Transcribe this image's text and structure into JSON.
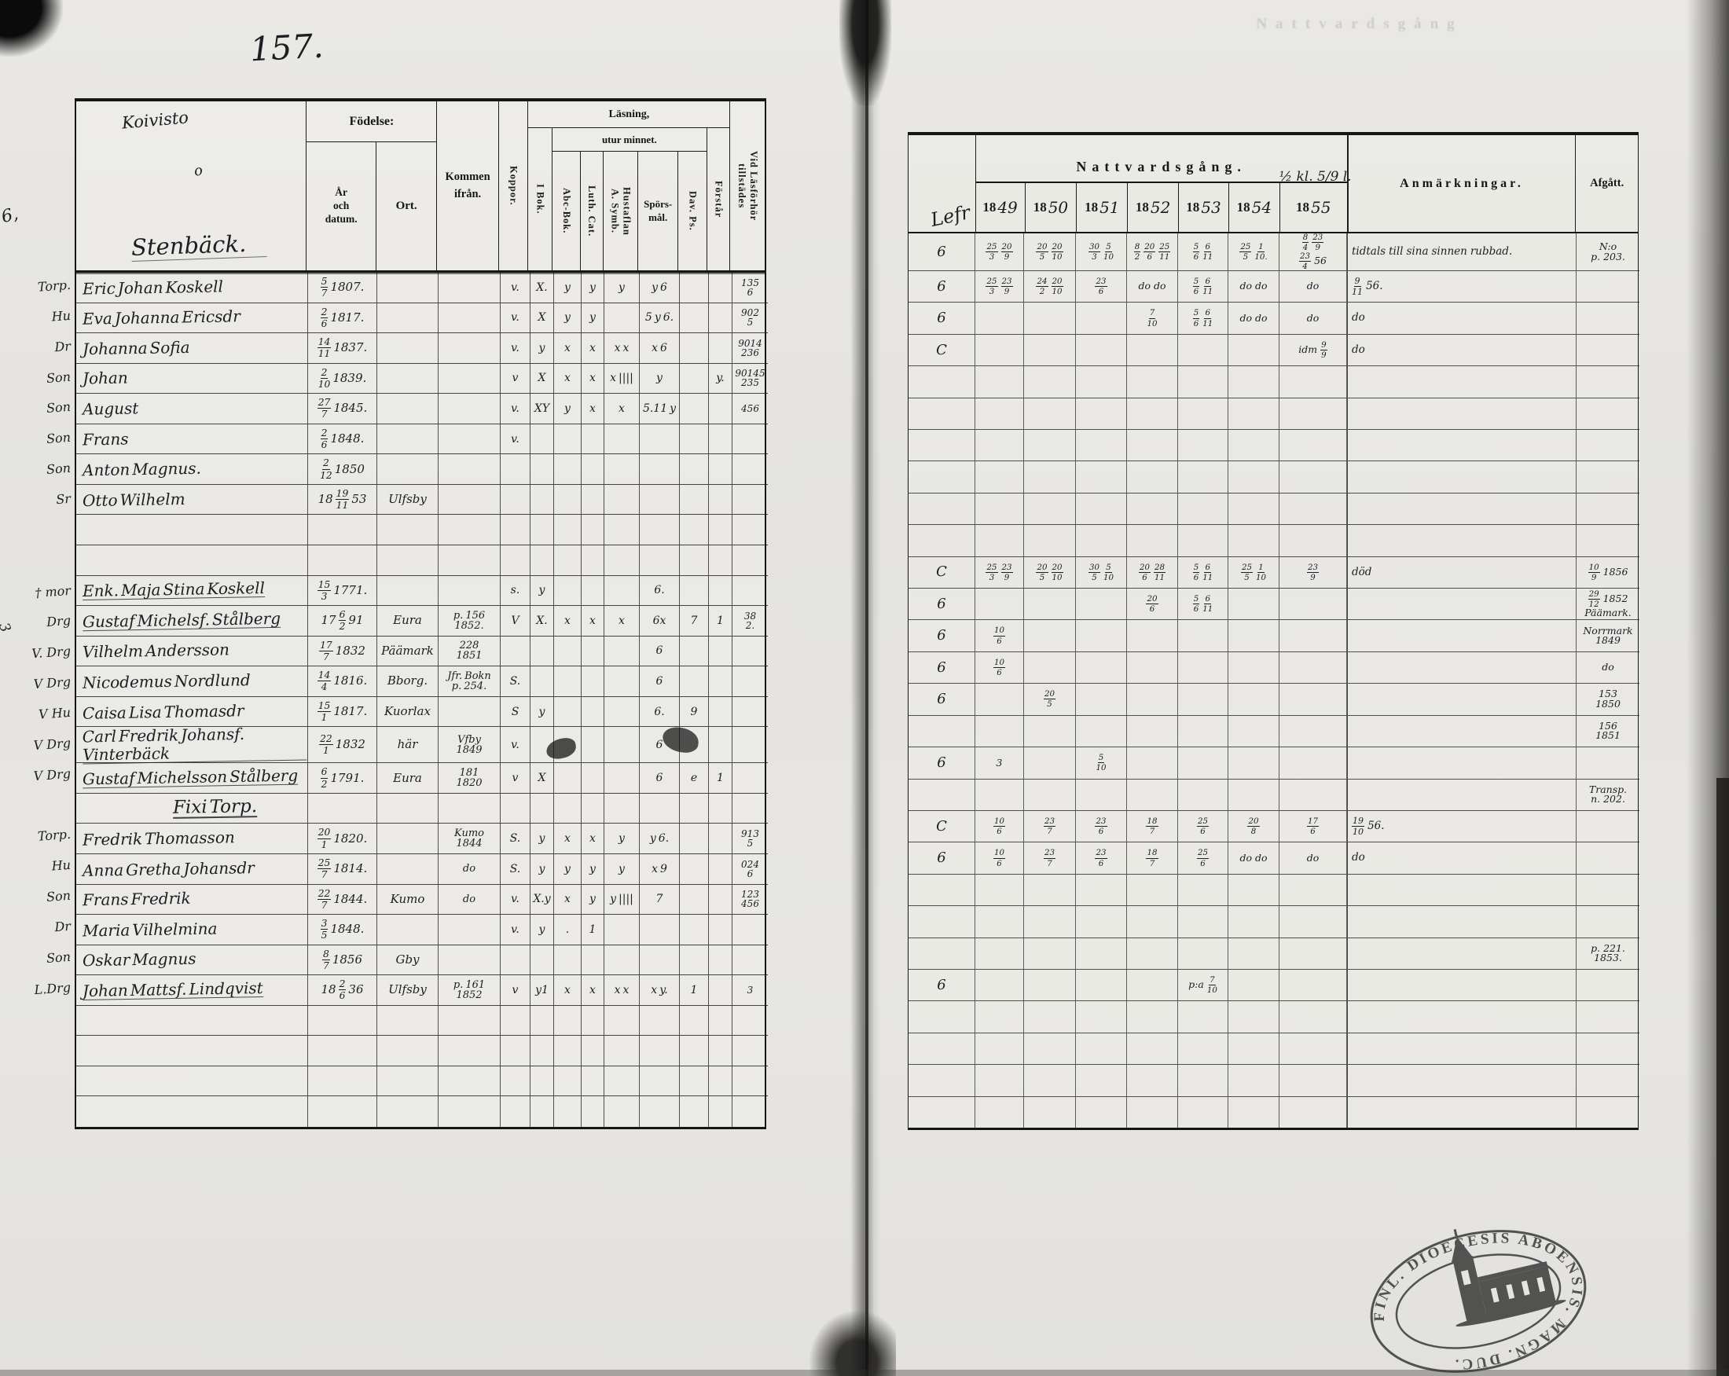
{
  "page": {
    "number": "157.",
    "margin_mark": "6,",
    "margin_mark2": "3",
    "ghost_header": "Nattvardsgång",
    "stamp": {
      "text": "FINL.  DIOECESIS ABOENSIS.  MAGN. DUC."
    }
  },
  "left": {
    "script_top": "Koivisto",
    "script_flourish": "o",
    "script_main": "Stenbäck.",
    "h": {
      "fodelse": "Födelse:",
      "ar": "År\noch\ndatum.",
      "ort": "Ort.",
      "kommen": "Kommen\nifrån.",
      "koppor": "Koppor.",
      "ibok": "I Bok.",
      "lasning": "Läsning,",
      "utur": "utur minnet.",
      "abc": "Abc-Bok.",
      "luth": "Luth. Cat.",
      "hust": "Hustaflan\nA. Symb.",
      "spors": "Spörs-\nmål.",
      "dav": "Dav. Ps.",
      "forst": "Förstår",
      "vidlas": "Vid Läsförhör\ntillstädes"
    }
  },
  "right": {
    "h": {
      "laser_script": "Lefr",
      "natt": "Nattvardsgång.",
      "natt_note": "½ kl. 5/9 l.",
      "years": [
        "1849",
        "1850",
        "1851",
        "1852",
        "1853",
        "1854",
        "1855"
      ],
      "anm": "Anmärkningar.",
      "afg": "Afgått."
    }
  },
  "rows": [
    {
      "prefix": "Torp.",
      "name": "Eric Johan Koskell",
      "born": "5/7 1807.",
      "ort": "",
      "from": "",
      "koppor": "v.",
      "ibok": "X.",
      "abc": "y",
      "luth": "y",
      "hust": "y",
      "spors": "y 6",
      "dav": "",
      "forst": "",
      "vidlas": "135\n6",
      "laser": "6",
      "y49": "25/3 20/9",
      "y50": "20/5 20/10",
      "y51": "30/3 5/10",
      "y52": "8/2 20/6 25/11",
      "y53": "5/6 6/11",
      "y54": "25/5 1/10.",
      "y55": "8/4 23/9\n23/4 56",
      "anm": "tidtals till sina sinnen rubbad.",
      "afg": "N:o\np. 203."
    },
    {
      "prefix": "Hu",
      "name": "Eva Johanna Ericsdr",
      "born": "2/6 1817.",
      "ort": "",
      "from": "",
      "koppor": "v.",
      "ibok": "X",
      "abc": "y",
      "luth": "y",
      "hust": "",
      "spors": "5 y 6.",
      "dav": "",
      "forst": "",
      "vidlas": "902\n5",
      "laser": "6",
      "y49": "25/3 23/9",
      "y50": "24/2 20/10",
      "y51": "23/6",
      "y52": "do do",
      "y53": "5/6 6/11",
      "y54": "do do",
      "y55": "do",
      "anm": "9/11 56.",
      "afg": ""
    },
    {
      "prefix": "Dr",
      "name": "Johanna Sofia",
      "born": "14/11 1837.",
      "ort": "",
      "from": "",
      "koppor": "v.",
      "ibok": "y",
      "abc": "x",
      "luth": "x",
      "hust": "x x",
      "spors": "x 6",
      "dav": "",
      "forst": "",
      "vidlas": "9014\n236",
      "laser": "6",
      "y49": "",
      "y50": "",
      "y51": "",
      "y52": "7/10",
      "y53": "5/6 6/11",
      "y54": "do do",
      "y55": "do",
      "anm": "do",
      "afg": ""
    },
    {
      "prefix": "Son",
      "name": "Johan",
      "born": "2/10 1839.",
      "ort": "",
      "from": "",
      "koppor": "v",
      "ibok": "X",
      "abc": "x",
      "luth": "x",
      "hust": "x ||||",
      "spors": "y",
      "dav": "",
      "forst": "y.",
      "vidlas": "90145\n235",
      "laser": "C",
      "y49": "",
      "y50": "",
      "y51": "",
      "y52": "",
      "y53": "",
      "y54": "",
      "y55": "idm 9/9",
      "anm": "do",
      "afg": ""
    },
    {
      "prefix": "Son",
      "name": "August",
      "born": "27/7 1845.",
      "ort": "",
      "from": "",
      "koppor": "v.",
      "ibok": "XY",
      "abc": "y",
      "luth": "x",
      "hust": "x",
      "spors": "5.11 y",
      "dav": "",
      "forst": "",
      "vidlas": "456",
      "laser": "",
      "y49": "",
      "y50": "",
      "y51": "",
      "y52": "",
      "y53": "",
      "y54": "",
      "y55": "",
      "anm": "",
      "afg": ""
    },
    {
      "prefix": "Son",
      "name": "Frans",
      "born": "2/6 1848.",
      "ort": "",
      "from": "",
      "koppor": "v.",
      "ibok": "",
      "abc": "",
      "luth": "",
      "hust": "",
      "spors": "",
      "dav": "",
      "forst": "",
      "vidlas": "",
      "laser": "",
      "y49": "",
      "y50": "",
      "y51": "",
      "y52": "",
      "y53": "",
      "y54": "",
      "y55": "",
      "anm": "",
      "afg": ""
    },
    {
      "prefix": "Son",
      "name": "Anton Magnus.",
      "born": "2/12 1850",
      "ort": "",
      "from": "",
      "koppor": "",
      "ibok": "",
      "abc": "",
      "luth": "",
      "hust": "",
      "spors": "",
      "dav": "",
      "forst": "",
      "vidlas": "",
      "laser": "",
      "y49": "",
      "y50": "",
      "y51": "",
      "y52": "",
      "y53": "",
      "y54": "",
      "y55": "",
      "anm": "",
      "afg": ""
    },
    {
      "prefix": "Sr",
      "name": "Otto Wilhelm",
      "born": "18 19/11 53",
      "ort": "Ulfsby",
      "from": "",
      "koppor": "",
      "ibok": "",
      "abc": "",
      "luth": "",
      "hust": "",
      "spors": "",
      "dav": "",
      "forst": "",
      "vidlas": "",
      "laser": "",
      "y49": "",
      "y50": "",
      "y51": "",
      "y52": "",
      "y53": "",
      "y54": "",
      "y55": "",
      "anm": "",
      "afg": ""
    },
    {
      "prefix": "",
      "name": "",
      "born": "",
      "ort": "",
      "from": "",
      "koppor": "",
      "ibok": "",
      "abc": "",
      "luth": "",
      "hust": "",
      "spors": "",
      "dav": "",
      "forst": "",
      "vidlas": "",
      "laser": "",
      "y49": "",
      "y50": "",
      "y51": "",
      "y52": "",
      "y53": "",
      "y54": "",
      "y55": "",
      "anm": "",
      "afg": ""
    },
    {
      "prefix": "",
      "name": "",
      "born": "",
      "ort": "",
      "from": "",
      "koppor": "",
      "ibok": "",
      "abc": "",
      "luth": "",
      "hust": "",
      "spors": "",
      "dav": "",
      "forst": "",
      "vidlas": "",
      "laser": "",
      "y49": "",
      "y50": "",
      "y51": "",
      "y52": "",
      "y53": "",
      "y54": "",
      "y55": "",
      "anm": "",
      "afg": ""
    },
    {
      "prefix": "† mor",
      "u": true,
      "name": "Enk. Maja Stina Koskell",
      "born": "15/3 1771.",
      "ort": "",
      "from": "",
      "koppor": "s.",
      "ibok": "y",
      "abc": "",
      "luth": "",
      "hust": "",
      "spors": "6.",
      "dav": "",
      "forst": "",
      "vidlas": "",
      "laser": "C",
      "y49": "25/3 23/9",
      "y50": "20/5 20/10",
      "y51": "30/5 5/10",
      "y52": "20/6 28/11",
      "y53": "5/6 6/11",
      "y54": "25/5 1/10",
      "y55": "23/9",
      "anm": "död",
      "afg": "10/9 1856"
    },
    {
      "prefix": "Drg",
      "u": true,
      "name": "Gustaf Michelsf. Stålberg",
      "born": "17 6/2 91",
      "ort": "Eura",
      "from": "p. 156\n1852.",
      "koppor": "V",
      "ibok": "X.",
      "abc": "x",
      "luth": "x",
      "hust": "x",
      "spors": "6x",
      "dav": "7",
      "forst": "1",
      "vidlas": "38\n2.",
      "laser": "6",
      "y49": "",
      "y50": "",
      "y51": "",
      "y52": "20/6",
      "y53": "5/6 6/11",
      "y54": "",
      "y55": "",
      "anm": "",
      "afg": "29/12 1852\nPäämark."
    },
    {
      "prefix": "V. Drg",
      "name": "Vilhelm Andersson",
      "born": "17/7 1832",
      "ort": "Päämark",
      "from": "228\n1851",
      "koppor": "",
      "ibok": "",
      "abc": "",
      "luth": "",
      "hust": "",
      "spors": "6",
      "dav": "",
      "forst": "",
      "vidlas": "",
      "laser": "6",
      "y49": "10/6",
      "y50": "",
      "y51": "",
      "y52": "",
      "y53": "",
      "y54": "",
      "y55": "",
      "anm": "",
      "afg": "Norrmark\n1849"
    },
    {
      "prefix": "V Drg",
      "name": "Nicodemus Nordlund",
      "born": "14/4 1816.",
      "ort": "Bborg.",
      "from": "Jfr. Bokn\np. 254.",
      "koppor": "S.",
      "ibok": "",
      "abc": "",
      "luth": "",
      "hust": "",
      "spors": "6",
      "dav": "",
      "forst": "",
      "vidlas": "",
      "laser": "6",
      "y49": "10/6",
      "y50": "",
      "y51": "",
      "y52": "",
      "y53": "",
      "y54": "",
      "y55": "",
      "anm": "",
      "afg": "do"
    },
    {
      "prefix": "V Hu",
      "name": "Caisa Lisa Thomasdr",
      "born": "15/1 1817.",
      "ort": "Kuorlax",
      "from": "",
      "koppor": "S",
      "ibok": "y",
      "abc": "",
      "luth": "",
      "hust": "",
      "spors": "6.",
      "dav": "9",
      "forst": "",
      "vidlas": "",
      "laser": "6",
      "y49": "",
      "y50": "20/5",
      "y51": "",
      "y52": "",
      "y53": "",
      "y54": "",
      "y55": "",
      "anm": "",
      "afg": "153\n1850"
    },
    {
      "prefix": "V Drg",
      "u": true,
      "name": "Carl Fredrik Johansf. Vinterbäck",
      "born": "22/1 1832",
      "ort": "här",
      "from": "Vfby\n1849",
      "koppor": "v.",
      "ibok": "",
      "abc": "",
      "luth": "",
      "hust": "",
      "spors": "6",
      "dav": "",
      "forst": "",
      "vidlas": "",
      "laser": "",
      "y49": "",
      "y50": "",
      "y51": "",
      "y52": "",
      "y53": "",
      "y54": "",
      "y55": "",
      "anm": "",
      "afg": "156\n1851"
    },
    {
      "prefix": "V Drg",
      "u": true,
      "name": "Gustaf Michelsson Stålberg",
      "born": "6/2 1791.",
      "ort": "Eura",
      "from": "181\n1820",
      "koppor": "v",
      "ibok": "X",
      "abc": "",
      "luth": "",
      "hust": "",
      "spors": "6",
      "dav": "e",
      "forst": "1",
      "vidlas": "",
      "laser": "6",
      "y49": "3",
      "y50": "",
      "y51": "5/10",
      "y52": "",
      "y53": "",
      "y54": "",
      "y55": "",
      "anm": "",
      "afg": ""
    },
    {
      "type": "section",
      "prefix": "",
      "name": "Fixi Torp.",
      "born": "",
      "ort": "",
      "from": "",
      "koppor": "",
      "ibok": "",
      "abc": "",
      "luth": "",
      "hust": "",
      "spors": "",
      "dav": "",
      "forst": "",
      "vidlas": "",
      "laser": "",
      "y49": "",
      "y50": "",
      "y51": "",
      "y52": "",
      "y53": "",
      "y54": "",
      "y55": "",
      "anm": "",
      "afg": "Transp.\nn. 202."
    },
    {
      "prefix": "Torp.",
      "name": "Fredrik Thomasson",
      "born": "20/1 1820.",
      "ort": "",
      "from": "Kumo\n1844",
      "koppor": "S.",
      "ibok": "y",
      "abc": "x",
      "luth": "x",
      "hust": "y",
      "spors": "y 6.",
      "dav": "",
      "forst": "",
      "vidlas": "913\n5",
      "laser": "C",
      "y49": "10/6",
      "y50": "23/7",
      "y51": "23/6",
      "y52": "18/7",
      "y53": "25/6",
      "y54": "20/8",
      "y55": "17/6",
      "anm": "19/10 56.",
      "afg": ""
    },
    {
      "prefix": "Hu",
      "name": "Anna Gretha Johansdr",
      "born": "25/7 1814.",
      "ort": "",
      "from": "do",
      "koppor": "S.",
      "ibok": "y",
      "abc": "y",
      "luth": "y",
      "hust": "y",
      "spors": "x 9",
      "dav": "",
      "forst": "",
      "vidlas": "024\n6",
      "laser": "6",
      "y49": "10/6",
      "y50": "23/7",
      "y51": "23/6",
      "y52": "18/7",
      "y53": "25/6",
      "y54": "do do",
      "y55": "do",
      "anm": "do",
      "afg": ""
    },
    {
      "prefix": "Son",
      "name": "Frans Fredrik",
      "born": "22/7 1844.",
      "ort": "Kumo",
      "from": "do",
      "koppor": "v.",
      "ibok": "X.y",
      "abc": "x",
      "luth": "y",
      "hust": "y ||||",
      "spors": "7",
      "dav": "",
      "forst": "",
      "vidlas": "123\n456",
      "laser": "",
      "y49": "",
      "y50": "",
      "y51": "",
      "y52": "",
      "y53": "",
      "y54": "",
      "y55": "",
      "anm": "",
      "afg": ""
    },
    {
      "prefix": "Dr",
      "name": "Maria Vilhelmina",
      "born": "3/5 1848.",
      "ort": "",
      "from": "",
      "koppor": "v.",
      "ibok": "y",
      "abc": ".",
      "luth": "1",
      "hust": "",
      "spors": "",
      "dav": "",
      "forst": "",
      "vidlas": "",
      "laser": "",
      "y49": "",
      "y50": "",
      "y51": "",
      "y52": "",
      "y53": "",
      "y54": "",
      "y55": "",
      "anm": "",
      "afg": ""
    },
    {
      "prefix": "Son",
      "name": "Oskar Magnus",
      "born": "8/7 1856",
      "ort": "Gby",
      "from": "",
      "koppor": "",
      "ibok": "",
      "abc": "",
      "luth": "",
      "hust": "",
      "spors": "",
      "dav": "",
      "forst": "",
      "vidlas": "",
      "laser": "",
      "y49": "",
      "y50": "",
      "y51": "",
      "y52": "",
      "y53": "",
      "y54": "",
      "y55": "",
      "anm": "",
      "afg": "p. 221.\n1853."
    },
    {
      "prefix": "L.Drg",
      "u": true,
      "name": "Johan Mattsf. Lindqvist",
      "born": "18 2/6 36",
      "ort": "Ulfsby",
      "from": "p. 161\n1852",
      "koppor": "v",
      "ibok": "y1",
      "abc": "x",
      "luth": "x",
      "hust": "x x",
      "spors": "x y.",
      "dav": "1",
      "forst": "",
      "vidlas": "3",
      "laser": "6",
      "y49": "",
      "y50": "",
      "y51": "",
      "y52": "",
      "y53": "p:a 7/10",
      "y54": "",
      "y55": "",
      "anm": "",
      "afg": ""
    },
    {
      "prefix": "",
      "name": "",
      "born": "",
      "ort": "",
      "from": "",
      "koppor": "",
      "ibok": "",
      "abc": "",
      "luth": "",
      "hust": "",
      "spors": "",
      "dav": "",
      "forst": "",
      "vidlas": "",
      "laser": "",
      "y49": "",
      "y50": "",
      "y51": "",
      "y52": "",
      "y53": "",
      "y54": "",
      "y55": "",
      "anm": "",
      "afg": ""
    },
    {
      "prefix": "",
      "name": "",
      "born": "",
      "ort": "",
      "from": "",
      "koppor": "",
      "ibok": "",
      "abc": "",
      "luth": "",
      "hust": "",
      "spors": "",
      "dav": "",
      "forst": "",
      "vidlas": "",
      "laser": "",
      "y49": "",
      "y50": "",
      "y51": "",
      "y52": "",
      "y53": "",
      "y54": "",
      "y55": "",
      "anm": "",
      "afg": ""
    },
    {
      "prefix": "",
      "name": "",
      "born": "",
      "ort": "",
      "from": "",
      "koppor": "",
      "ibok": "",
      "abc": "",
      "luth": "",
      "hust": "",
      "spors": "",
      "dav": "",
      "forst": "",
      "vidlas": "",
      "laser": "",
      "y49": "",
      "y50": "",
      "y51": "",
      "y52": "",
      "y53": "",
      "y54": "",
      "y55": "",
      "anm": "",
      "afg": ""
    },
    {
      "prefix": "",
      "name": "",
      "born": "",
      "ort": "",
      "from": "",
      "koppor": "",
      "ibok": "",
      "abc": "",
      "luth": "",
      "hust": "",
      "spors": "",
      "dav": "",
      "forst": "",
      "vidlas": "",
      "laser": "",
      "y49": "",
      "y50": "",
      "y51": "",
      "y52": "",
      "y53": "",
      "y54": "",
      "y55": "",
      "anm": "",
      "afg": ""
    }
  ]
}
